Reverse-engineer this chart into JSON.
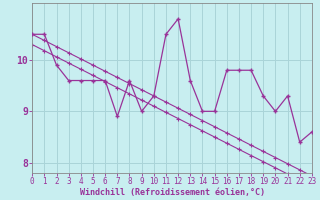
{
  "xlabel": "Windchill (Refroidissement éolien,°C)",
  "bg_color": "#c8eef0",
  "grid_color": "#aad4d8",
  "line_color": "#993399",
  "hours": [
    0,
    1,
    2,
    3,
    4,
    5,
    6,
    7,
    8,
    9,
    10,
    11,
    12,
    13,
    14,
    15,
    16,
    17,
    18,
    19,
    20,
    21,
    22,
    23
  ],
  "windchill": [
    10.5,
    10.5,
    9.9,
    9.6,
    9.6,
    9.6,
    9.6,
    8.9,
    9.6,
    9.0,
    9.3,
    10.5,
    10.8,
    9.6,
    9.0,
    9.0,
    9.8,
    9.8,
    9.8,
    9.3,
    9.0,
    9.3,
    8.4,
    8.6
  ],
  "trend_upper": [
    10.5,
    10.38,
    10.26,
    10.14,
    10.02,
    9.9,
    9.78,
    9.66,
    9.54,
    9.42,
    9.3,
    9.18,
    9.06,
    8.94,
    8.82,
    8.7,
    8.58,
    8.46,
    8.34,
    8.22,
    8.1,
    7.98,
    7.86,
    7.74
  ],
  "trend_lower": [
    10.3,
    10.18,
    10.06,
    9.94,
    9.82,
    9.7,
    9.58,
    9.46,
    9.34,
    9.22,
    9.1,
    8.98,
    8.86,
    8.74,
    8.62,
    8.5,
    8.38,
    8.26,
    8.14,
    8.02,
    7.9,
    7.78,
    7.66,
    7.54
  ],
  "xlim": [
    0,
    23
  ],
  "ylim": [
    7.8,
    11.1
  ],
  "yticks": [
    8,
    9,
    10
  ],
  "xticks": [
    0,
    1,
    2,
    3,
    4,
    5,
    6,
    7,
    8,
    9,
    10,
    11,
    12,
    13,
    14,
    15,
    16,
    17,
    18,
    19,
    20,
    21,
    22,
    23
  ],
  "tick_fontsize": 5.5,
  "label_fontsize": 6.0,
  "marker": "+"
}
